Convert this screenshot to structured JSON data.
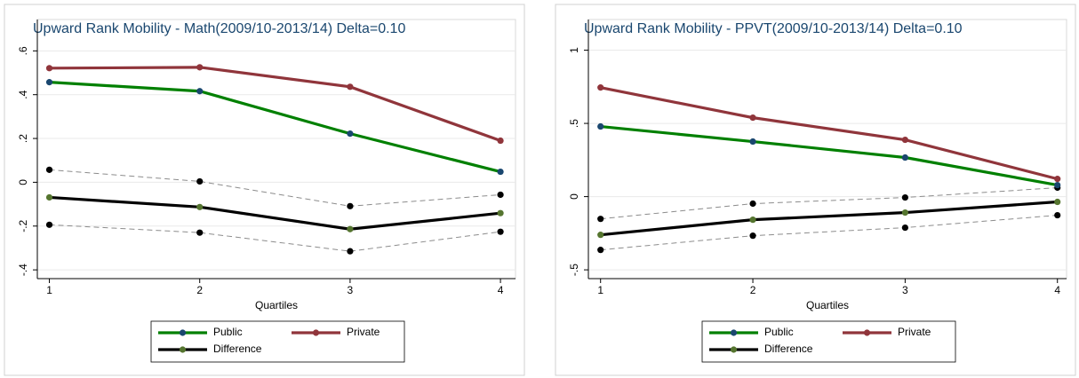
{
  "chart_data": [
    {
      "type": "line",
      "title": "Upward Rank Mobility - Math(2009/10-2013/14) Delta=0.10",
      "x_label": "Quartiles",
      "x": [
        1,
        2,
        3,
        4
      ],
      "xlim": [
        0.92,
        4.1
      ],
      "xticks": [
        1,
        2,
        3,
        4
      ],
      "ylim": [
        -0.44,
        0.65
      ],
      "yticks": [
        {
          "value": -0.4,
          "label": "-.4"
        },
        {
          "value": -0.2,
          "label": "-.2"
        },
        0,
        {
          "value": 0.2,
          "label": ".2"
        },
        {
          "value": 0.4,
          "label": ".4"
        },
        {
          "value": 0.6,
          "label": ".6"
        }
      ],
      "grid": true,
      "series": [
        {
          "name": "Public",
          "color": "#008000",
          "marker_color": "#1a476f",
          "values": [
            0.457,
            0.416,
            0.222,
            0.048
          ]
        },
        {
          "name": "Private",
          "color": "#90353b",
          "marker_color": "#90353b",
          "values": [
            0.521,
            0.525,
            0.436,
            0.19
          ]
        },
        {
          "name": "Difference",
          "color": "#000000",
          "marker_color": "#55752f",
          "values": [
            -0.069,
            -0.113,
            -0.214,
            -0.141
          ]
        },
        {
          "color": "#8c8c8c",
          "marker_color": "#000000",
          "dashed": true,
          "values": [
            0.057,
            0.004,
            -0.109,
            -0.057
          ]
        },
        {
          "color": "#8c8c8c",
          "marker_color": "#000000",
          "dashed": true,
          "values": [
            -0.194,
            -0.23,
            -0.315,
            -0.226
          ]
        }
      ]
    },
    {
      "type": "line",
      "title": "Upward Rank Mobility - PPVT(2009/10-2013/14) Delta=0.10",
      "x_label": "Quartiles",
      "x": [
        1,
        2,
        3,
        4
      ],
      "xlim": [
        0.92,
        4.06
      ],
      "xticks": [
        1,
        2,
        3,
        4
      ],
      "ylim": [
        -0.56,
        1.07
      ],
      "yticks": [
        {
          "value": -0.5,
          "label": "-.5"
        },
        0,
        {
          "value": 0.5,
          "label": ".5"
        },
        1
      ],
      "grid": true,
      "series": [
        {
          "name": "Public",
          "color": "#008000",
          "marker_color": "#1a476f",
          "values": [
            0.479,
            0.376,
            0.267,
            0.079
          ]
        },
        {
          "name": "Private",
          "color": "#90353b",
          "marker_color": "#90353b",
          "values": [
            0.745,
            0.539,
            0.388,
            0.121
          ]
        },
        {
          "name": "Difference",
          "color": "#000000",
          "marker_color": "#55752f",
          "values": [
            -0.261,
            -0.158,
            -0.109,
            -0.036
          ]
        },
        {
          "color": "#8c8c8c",
          "marker_color": "#000000",
          "dashed": true,
          "values": [
            -0.152,
            -0.048,
            -0.006,
            0.061
          ]
        },
        {
          "color": "#8c8c8c",
          "marker_color": "#000000",
          "dashed": true,
          "values": [
            -0.364,
            -0.267,
            -0.212,
            -0.127
          ]
        }
      ]
    }
  ]
}
